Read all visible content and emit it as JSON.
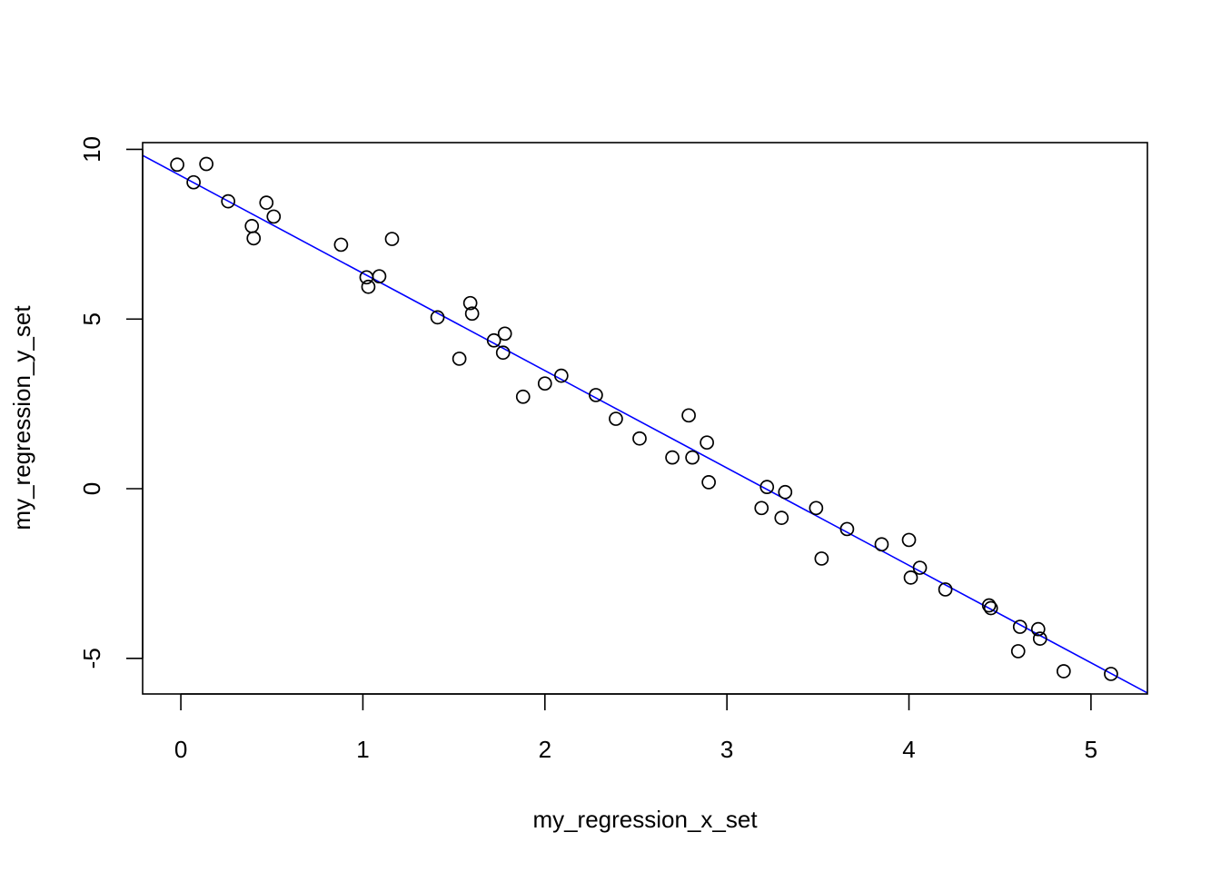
{
  "chart_data": {
    "type": "scatter",
    "title": "",
    "xlabel": "my_regression_x_set",
    "ylabel": "my_regression_y_set",
    "xlim": [
      -0.21,
      5.31
    ],
    "ylim": [
      -6.05,
      10.2
    ],
    "x_ticks": [
      0,
      1,
      2,
      3,
      4,
      5
    ],
    "y_ticks": [
      -5,
      0,
      5,
      10
    ],
    "x_tick_labels": [
      "0",
      "1",
      "2",
      "3",
      "4",
      "5"
    ],
    "y_tick_labels": [
      "-5",
      "0",
      "5",
      "10"
    ],
    "grid": false,
    "legend": "none",
    "point_style": "open-circle",
    "points": [
      {
        "x": -0.02,
        "y": 9.55
      },
      {
        "x": 0.07,
        "y": 9.03
      },
      {
        "x": 0.14,
        "y": 9.57
      },
      {
        "x": 0.26,
        "y": 8.47
      },
      {
        "x": 0.39,
        "y": 7.74
      },
      {
        "x": 0.4,
        "y": 7.38
      },
      {
        "x": 0.47,
        "y": 8.43
      },
      {
        "x": 0.51,
        "y": 8.02
      },
      {
        "x": 0.88,
        "y": 7.19
      },
      {
        "x": 1.02,
        "y": 6.23
      },
      {
        "x": 1.03,
        "y": 5.95
      },
      {
        "x": 1.09,
        "y": 6.26
      },
      {
        "x": 1.16,
        "y": 7.36
      },
      {
        "x": 1.41,
        "y": 5.05
      },
      {
        "x": 1.53,
        "y": 3.83
      },
      {
        "x": 1.59,
        "y": 5.47
      },
      {
        "x": 1.6,
        "y": 5.16
      },
      {
        "x": 1.72,
        "y": 4.37
      },
      {
        "x": 1.77,
        "y": 4.01
      },
      {
        "x": 1.78,
        "y": 4.57
      },
      {
        "x": 1.88,
        "y": 2.71
      },
      {
        "x": 2.0,
        "y": 3.1
      },
      {
        "x": 2.09,
        "y": 3.33
      },
      {
        "x": 2.28,
        "y": 2.76
      },
      {
        "x": 2.39,
        "y": 2.06
      },
      {
        "x": 2.52,
        "y": 1.48
      },
      {
        "x": 2.7,
        "y": 0.92
      },
      {
        "x": 2.79,
        "y": 2.16
      },
      {
        "x": 2.81,
        "y": 0.92
      },
      {
        "x": 2.89,
        "y": 1.36
      },
      {
        "x": 2.9,
        "y": 0.19
      },
      {
        "x": 3.19,
        "y": -0.57
      },
      {
        "x": 3.22,
        "y": 0.05
      },
      {
        "x": 3.3,
        "y": -0.86
      },
      {
        "x": 3.32,
        "y": -0.1
      },
      {
        "x": 3.49,
        "y": -0.57
      },
      {
        "x": 3.52,
        "y": -2.06
      },
      {
        "x": 3.66,
        "y": -1.19
      },
      {
        "x": 3.85,
        "y": -1.64
      },
      {
        "x": 4.0,
        "y": -1.51
      },
      {
        "x": 4.01,
        "y": -2.62
      },
      {
        "x": 4.06,
        "y": -2.33
      },
      {
        "x": 4.2,
        "y": -2.97
      },
      {
        "x": 4.44,
        "y": -3.44
      },
      {
        "x": 4.45,
        "y": -3.52
      },
      {
        "x": 4.6,
        "y": -4.79
      },
      {
        "x": 4.61,
        "y": -4.07
      },
      {
        "x": 4.71,
        "y": -4.14
      },
      {
        "x": 4.72,
        "y": -4.42
      },
      {
        "x": 4.85,
        "y": -5.38
      },
      {
        "x": 5.11,
        "y": -5.46
      }
    ],
    "fit_line": {
      "intercept": 9.22,
      "slope": -2.87,
      "color": "#0000ff"
    },
    "point_color": "#000000"
  }
}
